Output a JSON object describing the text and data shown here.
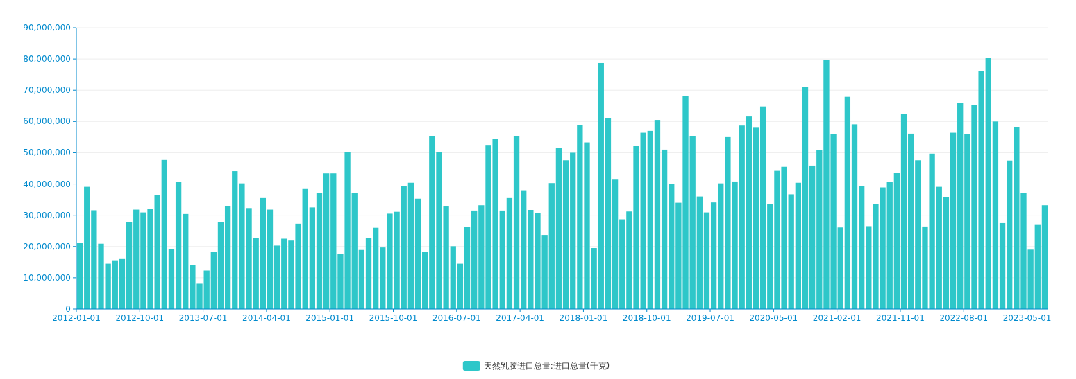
{
  "chart_data": {
    "type": "bar",
    "categories": [
      "2012-01-01",
      null,
      null,
      null,
      null,
      null,
      null,
      null,
      null,
      "2012-10-01",
      null,
      null,
      null,
      null,
      null,
      null,
      null,
      null,
      "2013-07-01",
      null,
      null,
      null,
      null,
      null,
      null,
      null,
      null,
      "2014-04-01",
      null,
      null,
      null,
      null,
      null,
      null,
      null,
      null,
      "2015-01-01",
      null,
      null,
      null,
      null,
      null,
      null,
      null,
      null,
      "2015-10-01",
      null,
      null,
      null,
      null,
      null,
      null,
      null,
      null,
      "2016-07-01",
      null,
      null,
      null,
      null,
      null,
      null,
      null,
      null,
      "2017-04-01",
      null,
      null,
      null,
      null,
      null,
      null,
      null,
      null,
      "2018-01-01",
      null,
      null,
      null,
      null,
      null,
      null,
      null,
      null,
      "2018-10-01",
      null,
      null,
      null,
      null,
      null,
      null,
      null,
      null,
      "2019-07-01",
      null,
      null,
      null,
      null,
      null,
      null,
      null,
      null,
      "2020-05-01",
      null,
      null,
      null,
      null,
      null,
      null,
      null,
      null,
      "2021-02-01",
      null,
      null,
      null,
      null,
      null,
      null,
      null,
      null,
      "2021-11-01",
      null,
      null,
      null,
      null,
      null,
      null,
      null,
      null,
      "2022-08-01",
      null,
      null,
      null,
      null,
      null,
      null,
      null,
      null,
      "2023-05-01",
      null,
      null
    ],
    "series": [
      {
        "name": "天然乳胶进口总量:进口总量(千克)",
        "color": "#2ec7c9",
        "values": [
          21200000,
          39100000,
          31600000,
          20900000,
          14500000,
          15600000,
          16000000,
          27800000,
          31800000,
          30900000,
          32000000,
          36400000,
          47700000,
          19200000,
          40600000,
          30400000,
          14000000,
          8100000,
          12300000,
          18300000,
          27900000,
          32900000,
          44100000,
          40200000,
          32300000,
          22700000,
          35500000,
          31800000,
          20300000,
          22500000,
          21900000,
          27300000,
          38400000,
          32500000,
          37100000,
          43400000,
          43400000,
          17600000,
          50200000,
          37100000,
          18900000,
          22700000,
          26000000,
          19700000,
          30500000,
          31100000,
          39300000,
          40400000,
          35300000,
          18300000,
          55300000,
          50100000,
          32800000,
          20100000,
          14500000,
          26200000,
          31500000,
          33200000,
          52500000,
          54400000,
          31500000,
          35500000,
          55200000,
          38000000,
          31700000,
          30600000,
          23700000,
          40300000,
          51500000,
          47600000,
          50000000,
          58900000,
          53300000,
          19500000,
          78700000,
          61000000,
          41400000,
          28700000,
          31200000,
          52200000,
          56400000,
          57000000,
          60500000,
          51000000,
          39900000,
          34000000,
          68100000,
          55300000,
          36000000,
          30900000,
          34100000,
          40200000,
          55000000,
          40800000,
          58700000,
          61600000,
          58000000,
          64800000,
          33500000,
          44200000,
          45500000,
          36700000,
          40400000,
          71100000,
          45900000,
          50800000,
          79700000,
          55900000,
          26100000,
          67900000,
          59100000,
          39300000,
          26500000,
          33500000,
          38900000,
          40600000,
          43600000,
          62300000,
          56100000,
          47600000,
          26400000,
          49700000,
          39100000,
          35700000,
          56400000,
          65900000,
          55900000,
          65200000,
          76100000,
          80400000,
          60000000,
          27500000,
          47500000,
          58300000,
          37100000,
          19000000,
          26900000,
          33200000
        ]
      }
    ],
    "ylim": [
      0,
      90000000
    ],
    "yticks": [
      {
        "value": 0,
        "label": "0"
      },
      {
        "value": 10000000,
        "label": "10,000,000"
      },
      {
        "value": 20000000,
        "label": "20,000,000"
      },
      {
        "value": 30000000,
        "label": "30,000,000"
      },
      {
        "value": 40000000,
        "label": "40,000,000"
      },
      {
        "value": 50000000,
        "label": "50,000,000"
      },
      {
        "value": 60000000,
        "label": "60,000,000"
      },
      {
        "value": 70000000,
        "label": "70,000,000"
      },
      {
        "value": 80000000,
        "label": "80,000,000"
      },
      {
        "value": 90000000,
        "label": "90,000,000"
      }
    ],
    "grid": "y",
    "legend": "bottom"
  }
}
